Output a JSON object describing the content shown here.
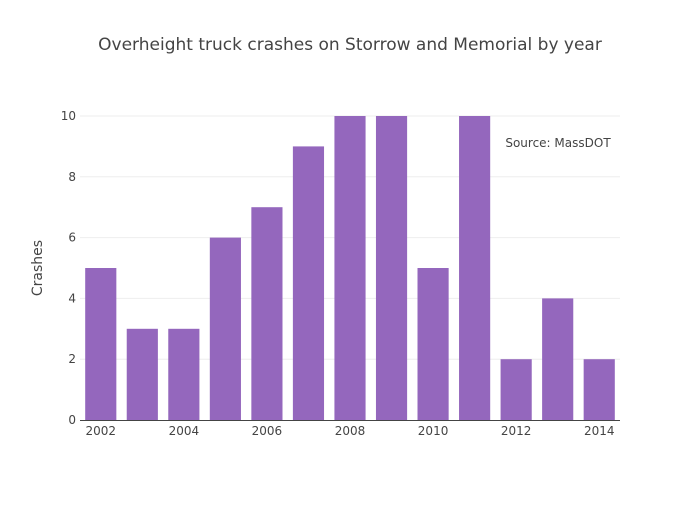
{
  "chart_data": {
    "type": "bar",
    "title": "Overheight truck crashes on Storrow and Memorial by year",
    "xlabel": "",
    "ylabel": "Crashes",
    "categories": [
      "2002",
      "2003",
      "2004",
      "2005",
      "2006",
      "2007",
      "2008",
      "2009",
      "2010",
      "2011",
      "2012",
      "2013",
      "2014"
    ],
    "values": [
      5,
      3,
      3,
      6,
      7,
      9,
      10,
      10,
      5,
      10,
      2,
      4,
      2
    ],
    "x_tick_labels": [
      "2002",
      "2004",
      "2006",
      "2008",
      "2010",
      "2012",
      "2014"
    ],
    "y_tick_labels": [
      "0",
      "2",
      "4",
      "6",
      "8",
      "10"
    ],
    "ylim": [
      0,
      10
    ],
    "annotation": "Source: MassDOT",
    "grid": true,
    "bar_color": "#9467bd"
  }
}
